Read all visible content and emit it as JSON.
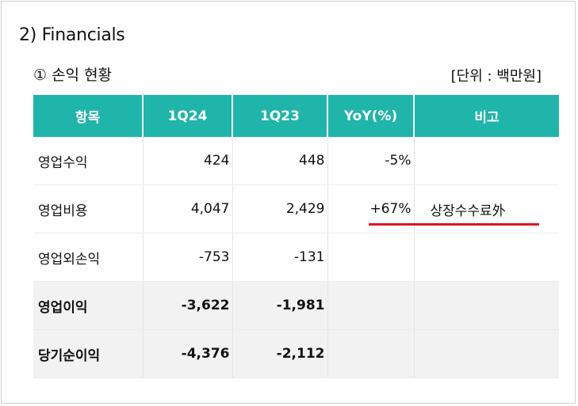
{
  "section_title": "2) Financials",
  "subtitle": "① 손익 현황",
  "unit": "[단위 : 백만원]",
  "table": {
    "headers": [
      "항목",
      "1Q24",
      "1Q23",
      "YoY(%)",
      "비고"
    ],
    "rows": [
      {
        "item": "영업수익",
        "q124": "424",
        "q123": "448",
        "yoy": "-5%",
        "note": ""
      },
      {
        "item": "영업비용",
        "q124": "4,047",
        "q123": "2,429",
        "yoy": "+67%",
        "note": "상장수수료外"
      },
      {
        "item": "영업외손익",
        "q124": "-753",
        "q123": "-131",
        "yoy": "",
        "note": ""
      },
      {
        "item": "영업이익",
        "q124": "-3,622",
        "q123": "-1,981",
        "yoy": "",
        "note": ""
      },
      {
        "item": "당기순이익",
        "q124": "-4,376",
        "q123": "-2,112",
        "yoy": "",
        "note": ""
      }
    ]
  },
  "colors": {
    "header_bg": "#1fb5aa",
    "underline": "#e0151f",
    "highlight": "#ec828c",
    "bold_row_bg": "#f2f2f2"
  }
}
